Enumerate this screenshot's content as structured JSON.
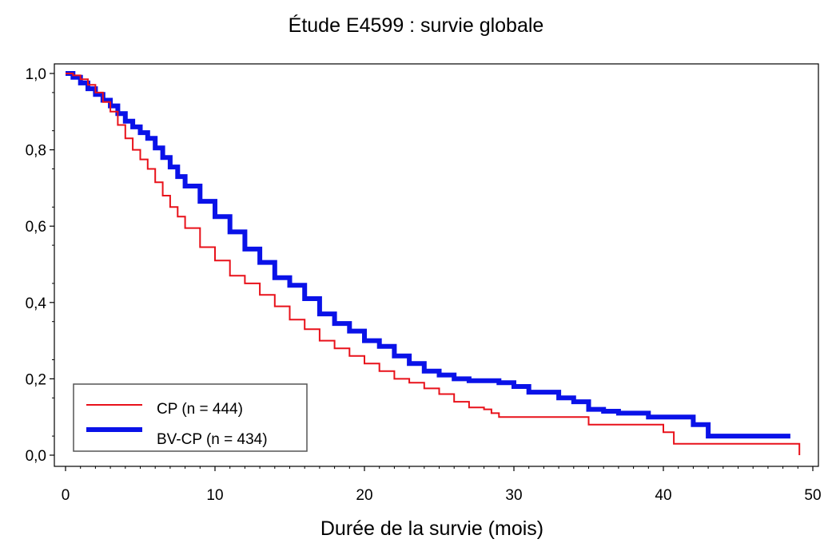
{
  "chart_data": {
    "type": "line",
    "title": "Étude E4599 : survie globale",
    "xlabel": "Durée de la survie (mois)",
    "ylabel": "",
    "xlim": [
      0,
      50
    ],
    "ylim": [
      0,
      1
    ],
    "x_ticks": [
      0,
      10,
      20,
      30,
      40,
      50
    ],
    "x_tick_labels": [
      "0",
      "10",
      "20",
      "30",
      "40",
      "50"
    ],
    "y_ticks": [
      0,
      0.2,
      0.4,
      0.6,
      0.8,
      1.0
    ],
    "y_tick_labels": [
      "0,0",
      "0,2",
      "0,4",
      "0,6",
      "0,8",
      "1,0"
    ],
    "grid": false,
    "legend_position": "bottom-left",
    "series": [
      {
        "name": "CP (n = 444)",
        "color": "#e8111a",
        "step": true,
        "x": [
          0,
          0.5,
          1,
          1.5,
          2,
          2.5,
          3,
          3.5,
          4,
          4.5,
          5,
          5.5,
          6,
          6.5,
          7,
          7.5,
          8,
          9,
          10,
          11,
          12,
          13,
          14,
          15,
          16,
          17,
          18,
          19,
          20,
          21,
          22,
          23,
          24,
          25,
          26,
          27,
          28,
          28.5,
          29,
          30,
          31,
          32,
          33,
          34,
          35,
          36,
          37,
          38,
          39,
          40,
          40.7,
          41,
          42,
          44,
          46,
          48,
          49,
          49.1
        ],
        "y": [
          1.0,
          0.995,
          0.985,
          0.97,
          0.95,
          0.925,
          0.9,
          0.865,
          0.83,
          0.8,
          0.775,
          0.75,
          0.715,
          0.68,
          0.65,
          0.625,
          0.595,
          0.545,
          0.51,
          0.47,
          0.45,
          0.42,
          0.39,
          0.355,
          0.33,
          0.3,
          0.28,
          0.26,
          0.24,
          0.22,
          0.2,
          0.19,
          0.175,
          0.16,
          0.14,
          0.125,
          0.12,
          0.11,
          0.1,
          0.1,
          0.1,
          0.1,
          0.1,
          0.1,
          0.08,
          0.08,
          0.08,
          0.08,
          0.08,
          0.06,
          0.03,
          0.03,
          0.03,
          0.03,
          0.03,
          0.03,
          0.03,
          0.0
        ]
      },
      {
        "name": "BV-CP (n = 434)",
        "color": "#0a12e8",
        "step": true,
        "x": [
          0,
          0.5,
          1,
          1.5,
          2,
          2.5,
          3,
          3.5,
          4,
          4.5,
          5,
          5.5,
          6,
          6.5,
          7,
          7.5,
          8,
          9,
          10,
          11,
          12,
          13,
          14,
          15,
          16,
          17,
          18,
          19,
          20,
          21,
          22,
          23,
          24,
          25,
          26,
          27,
          28,
          29,
          30,
          31,
          32,
          33,
          34,
          35,
          36,
          37,
          38,
          39,
          40,
          41,
          42,
          43,
          44,
          46,
          48,
          48.5
        ],
        "y": [
          1.0,
          0.99,
          0.975,
          0.96,
          0.945,
          0.93,
          0.915,
          0.895,
          0.875,
          0.86,
          0.845,
          0.83,
          0.805,
          0.78,
          0.755,
          0.73,
          0.705,
          0.665,
          0.625,
          0.585,
          0.54,
          0.505,
          0.465,
          0.445,
          0.41,
          0.37,
          0.345,
          0.325,
          0.3,
          0.285,
          0.26,
          0.24,
          0.22,
          0.21,
          0.2,
          0.195,
          0.195,
          0.19,
          0.18,
          0.165,
          0.165,
          0.15,
          0.14,
          0.12,
          0.115,
          0.11,
          0.11,
          0.1,
          0.1,
          0.1,
          0.08,
          0.05,
          0.05,
          0.05,
          0.05,
          0.05
        ]
      }
    ]
  }
}
